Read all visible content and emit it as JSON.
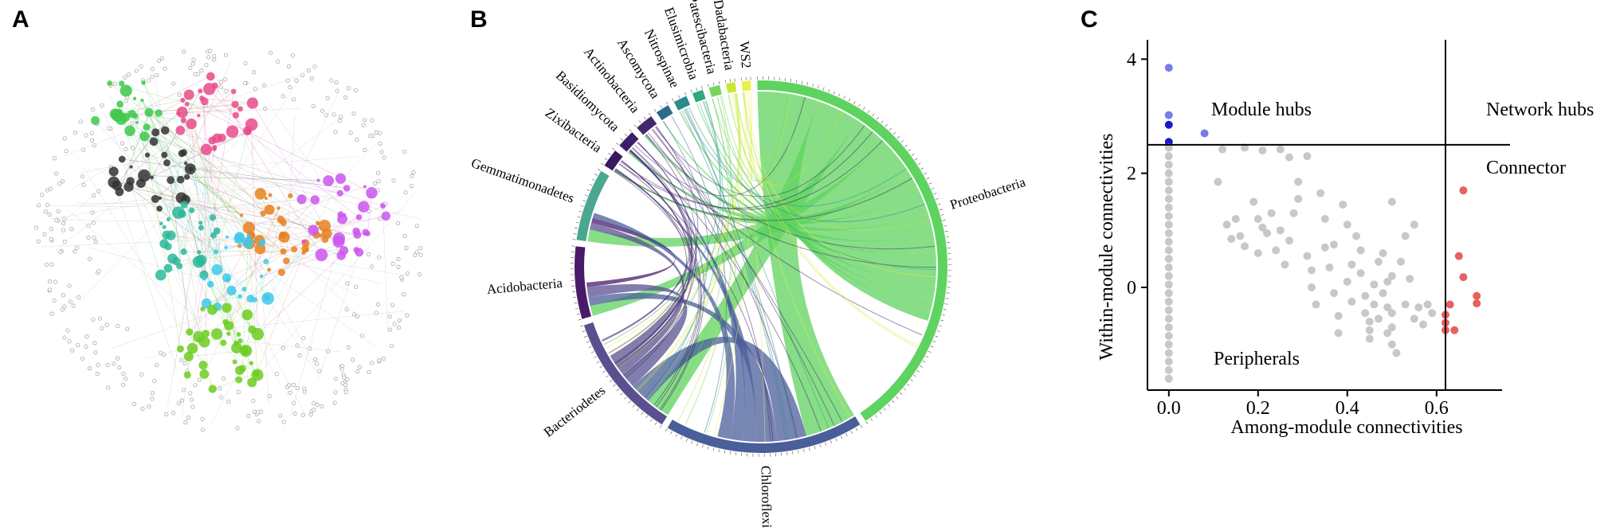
{
  "figure": {
    "panels": {
      "a": {
        "letter": "A"
      },
      "b": {
        "letter": "B"
      },
      "c": {
        "letter": "C"
      }
    }
  },
  "network": {
    "modules": [
      {
        "color": "#e84b8a",
        "role": "pink"
      },
      {
        "color": "#3ec94a",
        "role": "green"
      },
      {
        "color": "#333333",
        "role": "black"
      },
      {
        "color": "#2bb89a",
        "role": "teal"
      },
      {
        "color": "#e8801e",
        "role": "orange"
      },
      {
        "color": "#cc55ee",
        "role": "violet"
      },
      {
        "color": "#3fc8ea",
        "role": "cyan"
      },
      {
        "color": "#6ccc20",
        "role": "lime"
      },
      {
        "color": "#aaaaaa",
        "role": "peripheral"
      }
    ]
  },
  "chord": {
    "sectors": [
      {
        "label": "Proteobacteria",
        "color": "#5fd35f",
        "value": 52
      },
      {
        "label": "Chloroflexi",
        "color": "#4a5e9a",
        "value": 22
      },
      {
        "label": "Bacteriodetes",
        "color": "#5a5090",
        "value": 14
      },
      {
        "label": "Acidobacteria",
        "color": "#4a1a6a",
        "value": 8
      },
      {
        "label": "Gemmatimonadetes",
        "color": "#4aa890",
        "value": 8
      },
      {
        "label": "Zixibacteria",
        "color": "#3a1860",
        "value": 2
      },
      {
        "label": "Basidiomycota",
        "color": "#3c1f6a",
        "value": 2
      },
      {
        "label": "Actinobacteria",
        "color": "#44286e",
        "value": 2
      },
      {
        "label": "Ascomycota",
        "color": "#2e6a8a",
        "value": 1.5
      },
      {
        "label": "Nitrospinae",
        "color": "#2b8a8a",
        "value": 1.5
      },
      {
        "label": "Elusimicrobia",
        "color": "#2fa87a",
        "value": 1.2
      },
      {
        "label": "Patescibacteria",
        "color": "#74d65a",
        "value": 1.2
      },
      {
        "label": "Dadabacteria",
        "color": "#c8e830",
        "value": 1
      },
      {
        "label": "WS2",
        "color": "#e8f04a",
        "value": 1
      }
    ]
  },
  "chart_data": {
    "type": "scatter",
    "xlabel": "Among-module connectivities",
    "ylabel": "Within-module connectivities",
    "xlim": [
      -0.03,
      0.72
    ],
    "ylim": [
      -1.8,
      4.2
    ],
    "x_ticks": [
      0.0,
      0.2,
      0.4,
      0.6
    ],
    "x_tick_labels": [
      "0.0",
      "0.2",
      "0.4",
      "0.6"
    ],
    "y_ticks": [
      0,
      2,
      4
    ],
    "y_tick_labels": [
      "0",
      "2",
      "4"
    ],
    "thresholds": {
      "x": 0.62,
      "y": 2.5
    },
    "region_labels": {
      "module_hubs": "Module hubs",
      "network_hubs": "Network hubs",
      "connector": "Connector",
      "peripherals": "Peripherals"
    },
    "series": [
      {
        "role": "module_hubs_light",
        "color": "#7a7aee",
        "points": [
          [
            0.0,
            3.85
          ],
          [
            0.0,
            3.02
          ],
          [
            0.08,
            2.7
          ]
        ]
      },
      {
        "role": "module_hubs_dark",
        "color": "#1a1acc",
        "points": [
          [
            0.0,
            2.85
          ],
          [
            0.0,
            2.55
          ]
        ]
      },
      {
        "role": "connectors",
        "color": "#e86060",
        "points": [
          [
            0.66,
            1.7
          ],
          [
            0.65,
            0.55
          ],
          [
            0.66,
            0.18
          ],
          [
            0.69,
            -0.15
          ],
          [
            0.69,
            -0.28
          ],
          [
            0.63,
            -0.3
          ],
          [
            0.62,
            -0.48
          ],
          [
            0.62,
            -0.75
          ],
          [
            0.64,
            -0.75
          ],
          [
            0.62,
            -0.62
          ]
        ]
      },
      {
        "role": "peripherals",
        "color": "#c8c8c8",
        "points": [
          [
            0.0,
            2.45
          ],
          [
            0.0,
            2.3
          ],
          [
            0.0,
            2.15
          ],
          [
            0.0,
            2.0
          ],
          [
            0.0,
            1.85
          ],
          [
            0.0,
            1.7
          ],
          [
            0.0,
            1.55
          ],
          [
            0.0,
            1.4
          ],
          [
            0.0,
            1.25
          ],
          [
            0.0,
            1.1
          ],
          [
            0.0,
            0.95
          ],
          [
            0.0,
            0.8
          ],
          [
            0.0,
            0.65
          ],
          [
            0.0,
            0.5
          ],
          [
            0.0,
            0.35
          ],
          [
            0.0,
            0.2
          ],
          [
            0.0,
            0.05
          ],
          [
            0.0,
            -0.1
          ],
          [
            0.0,
            -0.25
          ],
          [
            0.0,
            -0.4
          ],
          [
            0.0,
            -0.55
          ],
          [
            0.0,
            -0.7
          ],
          [
            0.0,
            -0.85
          ],
          [
            0.0,
            -1.0
          ],
          [
            0.0,
            -1.15
          ],
          [
            0.0,
            -1.3
          ],
          [
            0.0,
            -1.45
          ],
          [
            0.0,
            -1.6
          ],
          [
            0.12,
            2.42
          ],
          [
            0.17,
            2.45
          ],
          [
            0.21,
            2.4
          ],
          [
            0.25,
            2.42
          ],
          [
            0.27,
            2.28
          ],
          [
            0.31,
            2.3
          ],
          [
            0.11,
            1.85
          ],
          [
            0.13,
            1.1
          ],
          [
            0.15,
            1.2
          ],
          [
            0.14,
            0.85
          ],
          [
            0.16,
            0.9
          ],
          [
            0.17,
            0.72
          ],
          [
            0.19,
            1.5
          ],
          [
            0.2,
            1.2
          ],
          [
            0.2,
            0.6
          ],
          [
            0.21,
            1.05
          ],
          [
            0.22,
            0.95
          ],
          [
            0.23,
            1.3
          ],
          [
            0.24,
            0.65
          ],
          [
            0.25,
            1.0
          ],
          [
            0.26,
            0.4
          ],
          [
            0.27,
            0.82
          ],
          [
            0.28,
            1.3
          ],
          [
            0.29,
            1.85
          ],
          [
            0.29,
            1.55
          ],
          [
            0.31,
            0.55
          ],
          [
            0.32,
            0.3
          ],
          [
            0.32,
            0.0
          ],
          [
            0.33,
            -0.3
          ],
          [
            0.34,
            1.65
          ],
          [
            0.35,
            1.2
          ],
          [
            0.35,
            0.7
          ],
          [
            0.36,
            0.35
          ],
          [
            0.37,
            0.75
          ],
          [
            0.37,
            -0.1
          ],
          [
            0.38,
            -0.5
          ],
          [
            0.38,
            -0.8
          ],
          [
            0.39,
            1.45
          ],
          [
            0.4,
            1.1
          ],
          [
            0.4,
            0.1
          ],
          [
            0.41,
            0.4
          ],
          [
            0.41,
            -0.25
          ],
          [
            0.42,
            0.9
          ],
          [
            0.43,
            0.65
          ],
          [
            0.43,
            0.25
          ],
          [
            0.44,
            -0.15
          ],
          [
            0.44,
            -0.45
          ],
          [
            0.45,
            -0.6
          ],
          [
            0.45,
            -0.75
          ],
          [
            0.45,
            -0.9
          ],
          [
            0.46,
            0.05
          ],
          [
            0.46,
            -0.3
          ],
          [
            0.47,
            0.45
          ],
          [
            0.47,
            -0.55
          ],
          [
            0.48,
            0.6
          ],
          [
            0.48,
            -0.1
          ],
          [
            0.49,
            -0.35
          ],
          [
            0.49,
            -0.8
          ],
          [
            0.5,
            1.5
          ],
          [
            0.5,
            -0.45
          ],
          [
            0.5,
            -0.7
          ],
          [
            0.5,
            -1.0
          ],
          [
            0.51,
            -1.15
          ],
          [
            0.5,
            0.2
          ],
          [
            0.49,
            0.1
          ],
          [
            0.52,
            0.45
          ],
          [
            0.53,
            0.9
          ],
          [
            0.53,
            -0.3
          ],
          [
            0.54,
            0.15
          ],
          [
            0.55,
            -0.55
          ],
          [
            0.55,
            1.1
          ],
          [
            0.56,
            -0.35
          ],
          [
            0.57,
            -0.65
          ],
          [
            0.58,
            -0.3
          ],
          [
            0.59,
            -0.45
          ]
        ]
      }
    ]
  }
}
